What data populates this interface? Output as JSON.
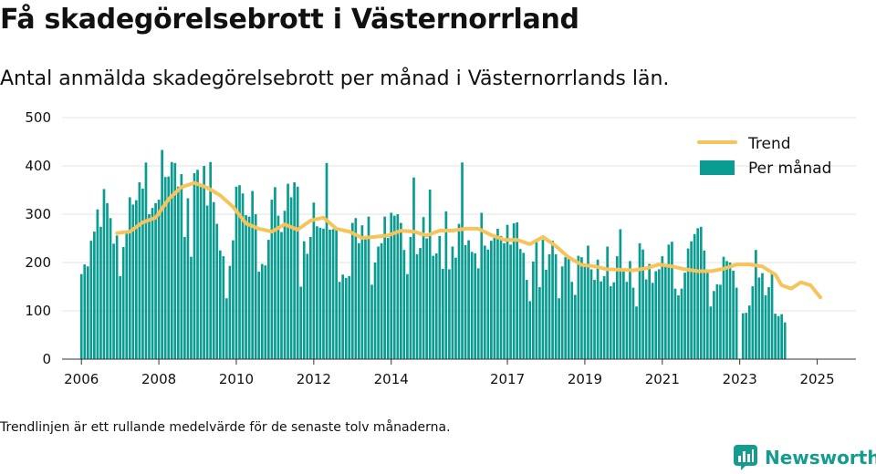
{
  "title": "Få skadegörelsebrott i Västernorrland",
  "subtitle": "Antal anmälda skadegörelsebrott per månad i Västernorrlands län.",
  "footnote": "Trendlinjen är ett rullande medelvärde för de senaste tolv månaderna.",
  "brand": {
    "name": "Newsworthy",
    "icon": "newsworthy-logo-icon",
    "color": "#169c8e"
  },
  "chart_data": {
    "type": "bar",
    "title": "",
    "xlabel": "",
    "ylabel": "",
    "ylim": [
      0,
      500
    ],
    "xlim": [
      2005.5,
      2026.0
    ],
    "grid": "horizontal",
    "legend_position": "top-right",
    "y_ticks": [
      "0",
      "100",
      "200",
      "300",
      "400",
      "500"
    ],
    "x_ticks": [
      "2006",
      "2008",
      "2010",
      "2012",
      "2014",
      "2017",
      "2019",
      "2021",
      "2023",
      "2025"
    ],
    "start": "2006-01",
    "series": [
      {
        "name": "Per månad",
        "kind": "bar",
        "color": "#0a9b91",
        "values": [
          176,
          196,
          192,
          245,
          264,
          310,
          274,
          352,
          323,
          292,
          239,
          256,
          172,
          232,
          262,
          335,
          320,
          329,
          366,
          353,
          407,
          300,
          313,
          323,
          330,
          433,
          377,
          378,
          408,
          406,
          357,
          383,
          253,
          333,
          212,
          385,
          392,
          361,
          400,
          318,
          408,
          325,
          280,
          225,
          213,
          126,
          193,
          246,
          357,
          360,
          343,
          298,
          295,
          348,
          300,
          181,
          197,
          194,
          247,
          330,
          356,
          297,
          263,
          307,
          363,
          335,
          366,
          357,
          150,
          244,
          218,
          253,
          324,
          275,
          272,
          270,
          406,
          268,
          269,
          270,
          160,
          175,
          168,
          172,
          282,
          292,
          240,
          277,
          248,
          295,
          154,
          200,
          233,
          240,
          295,
          251,
          303,
          297,
          300,
          282,
          226,
          176,
          253,
          376,
          217,
          230,
          294,
          250,
          351,
          214,
          219,
          255,
          187,
          306,
          186,
          233,
          210,
          280,
          407,
          236,
          246,
          222,
          219,
          188,
          303,
          235,
          227,
          245,
          257,
          270,
          255,
          240,
          278,
          237,
          281,
          283,
          228,
          220,
          164,
          120,
          202,
          247,
          149,
          247,
          185,
          217,
          245,
          217,
          126,
          192,
          211,
          213,
          160,
          133,
          214,
          211,
          191,
          235,
          186,
          164,
          206,
          161,
          172,
          233,
          151,
          159,
          213,
          269,
          185,
          160,
          203,
          148,
          109,
          240,
          227,
          165,
          197,
          158,
          182,
          186,
          213,
          197,
          237,
          243,
          146,
          132,
          146,
          179,
          229,
          244,
          259,
          271,
          274,
          225,
          186,
          109,
          141,
          155,
          154,
          212,
          203,
          200,
          183,
          148,
          0,
          95,
          96,
          111,
          151,
          226,
          169,
          178,
          132,
          149,
          182,
          94,
          89,
          93,
          76
        ]
      },
      {
        "name": "Trend",
        "kind": "line",
        "color": "#f7c35b",
        "points": [
          [
            2006.92,
            261
          ],
          [
            2007.25,
            264
          ],
          [
            2007.58,
            283
          ],
          [
            2007.92,
            293
          ],
          [
            2008.25,
            331
          ],
          [
            2008.58,
            356
          ],
          [
            2008.92,
            365
          ],
          [
            2009.25,
            355
          ],
          [
            2009.58,
            339
          ],
          [
            2009.92,
            315
          ],
          [
            2010.25,
            281
          ],
          [
            2010.58,
            270
          ],
          [
            2010.92,
            264
          ],
          [
            2011.25,
            279
          ],
          [
            2011.58,
            268
          ],
          [
            2011.92,
            287
          ],
          [
            2012.25,
            293
          ],
          [
            2012.58,
            270
          ],
          [
            2012.92,
            264
          ],
          [
            2013.25,
            251
          ],
          [
            2013.58,
            253
          ],
          [
            2013.92,
            256
          ],
          [
            2014.25,
            266
          ],
          [
            2014.58,
            264
          ],
          [
            2014.92,
            256
          ],
          [
            2015.25,
            266
          ],
          [
            2015.58,
            266
          ],
          [
            2015.92,
            270
          ],
          [
            2016.25,
            270
          ],
          [
            2016.58,
            257
          ],
          [
            2016.92,
            247
          ],
          [
            2017.25,
            247
          ],
          [
            2017.58,
            238
          ],
          [
            2017.92,
            253
          ],
          [
            2018.25,
            234
          ],
          [
            2018.58,
            211
          ],
          [
            2018.92,
            195
          ],
          [
            2019.25,
            192
          ],
          [
            2019.58,
            186
          ],
          [
            2019.92,
            185
          ],
          [
            2020.25,
            184
          ],
          [
            2020.58,
            188
          ],
          [
            2020.92,
            196
          ],
          [
            2021.25,
            192
          ],
          [
            2021.58,
            186
          ],
          [
            2021.92,
            182
          ],
          [
            2022.25,
            182
          ],
          [
            2022.58,
            187
          ],
          [
            2022.92,
            196
          ],
          [
            2023.25,
            196
          ],
          [
            2023.58,
            192
          ],
          [
            2023.92,
            175
          ],
          [
            2024.08,
            153
          ],
          [
            2024.33,
            146
          ],
          [
            2024.58,
            159
          ],
          [
            2024.83,
            153
          ],
          [
            2025.08,
            128
          ]
        ]
      }
    ]
  }
}
